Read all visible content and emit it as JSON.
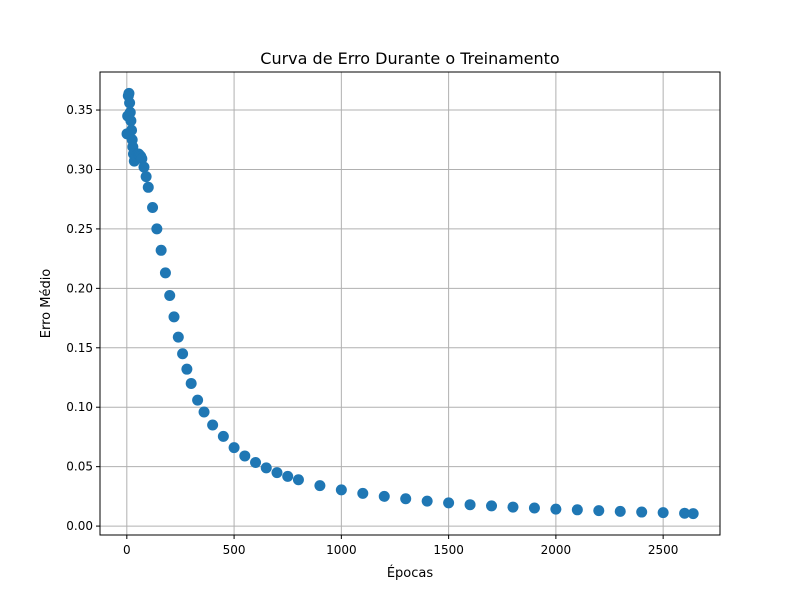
{
  "chart_data": {
    "type": "scatter",
    "title": "Curva de Erro Durante o Treinamento",
    "xlabel": "Épocas",
    "ylabel": "Erro Médio",
    "xlim": [
      -125,
      2765
    ],
    "ylim": [
      -0.0075,
      0.382
    ],
    "xticks": [
      0,
      500,
      1000,
      1500,
      2000,
      2500
    ],
    "xtick_labels": [
      "0",
      "500",
      "1000",
      "1500",
      "2000",
      "2500"
    ],
    "yticks": [
      0.0,
      0.05,
      0.1,
      0.15,
      0.2,
      0.25,
      0.3,
      0.35
    ],
    "ytick_labels": [
      "0.00",
      "0.05",
      "0.10",
      "0.15",
      "0.20",
      "0.25",
      "0.30",
      "0.35"
    ],
    "grid": true,
    "marker": "circle",
    "color": "#1f77b4",
    "series": [
      {
        "x": [
          1,
          4,
          7,
          10,
          13,
          16,
          19,
          22,
          25,
          28,
          31,
          35,
          40,
          45,
          50,
          55,
          60,
          65,
          70,
          80,
          90,
          100,
          120,
          140,
          160,
          180,
          200,
          220,
          240,
          260,
          280,
          300,
          330,
          360,
          400,
          450,
          500,
          550,
          600,
          650,
          700,
          750,
          800,
          900,
          1000,
          1100,
          1200,
          1300,
          1400,
          1500,
          1600,
          1700,
          1800,
          1900,
          2000,
          2100,
          2200,
          2300,
          2400,
          2500,
          2600,
          2640
        ],
        "y": [
          0.33,
          0.345,
          0.362,
          0.364,
          0.356,
          0.348,
          0.341,
          0.333,
          0.325,
          0.319,
          0.313,
          0.307,
          0.309,
          0.311,
          0.313,
          0.313,
          0.312,
          0.311,
          0.309,
          0.302,
          0.294,
          0.285,
          0.268,
          0.25,
          0.232,
          0.213,
          0.194,
          0.176,
          0.159,
          0.145,
          0.132,
          0.12,
          0.106,
          0.096,
          0.085,
          0.0755,
          0.066,
          0.059,
          0.0535,
          0.049,
          0.045,
          0.0418,
          0.039,
          0.034,
          0.0305,
          0.0275,
          0.025,
          0.023,
          0.021,
          0.0195,
          0.018,
          0.017,
          0.016,
          0.0152,
          0.0143,
          0.0137,
          0.013,
          0.0124,
          0.0118,
          0.0113,
          0.0108,
          0.0105
        ]
      }
    ]
  }
}
